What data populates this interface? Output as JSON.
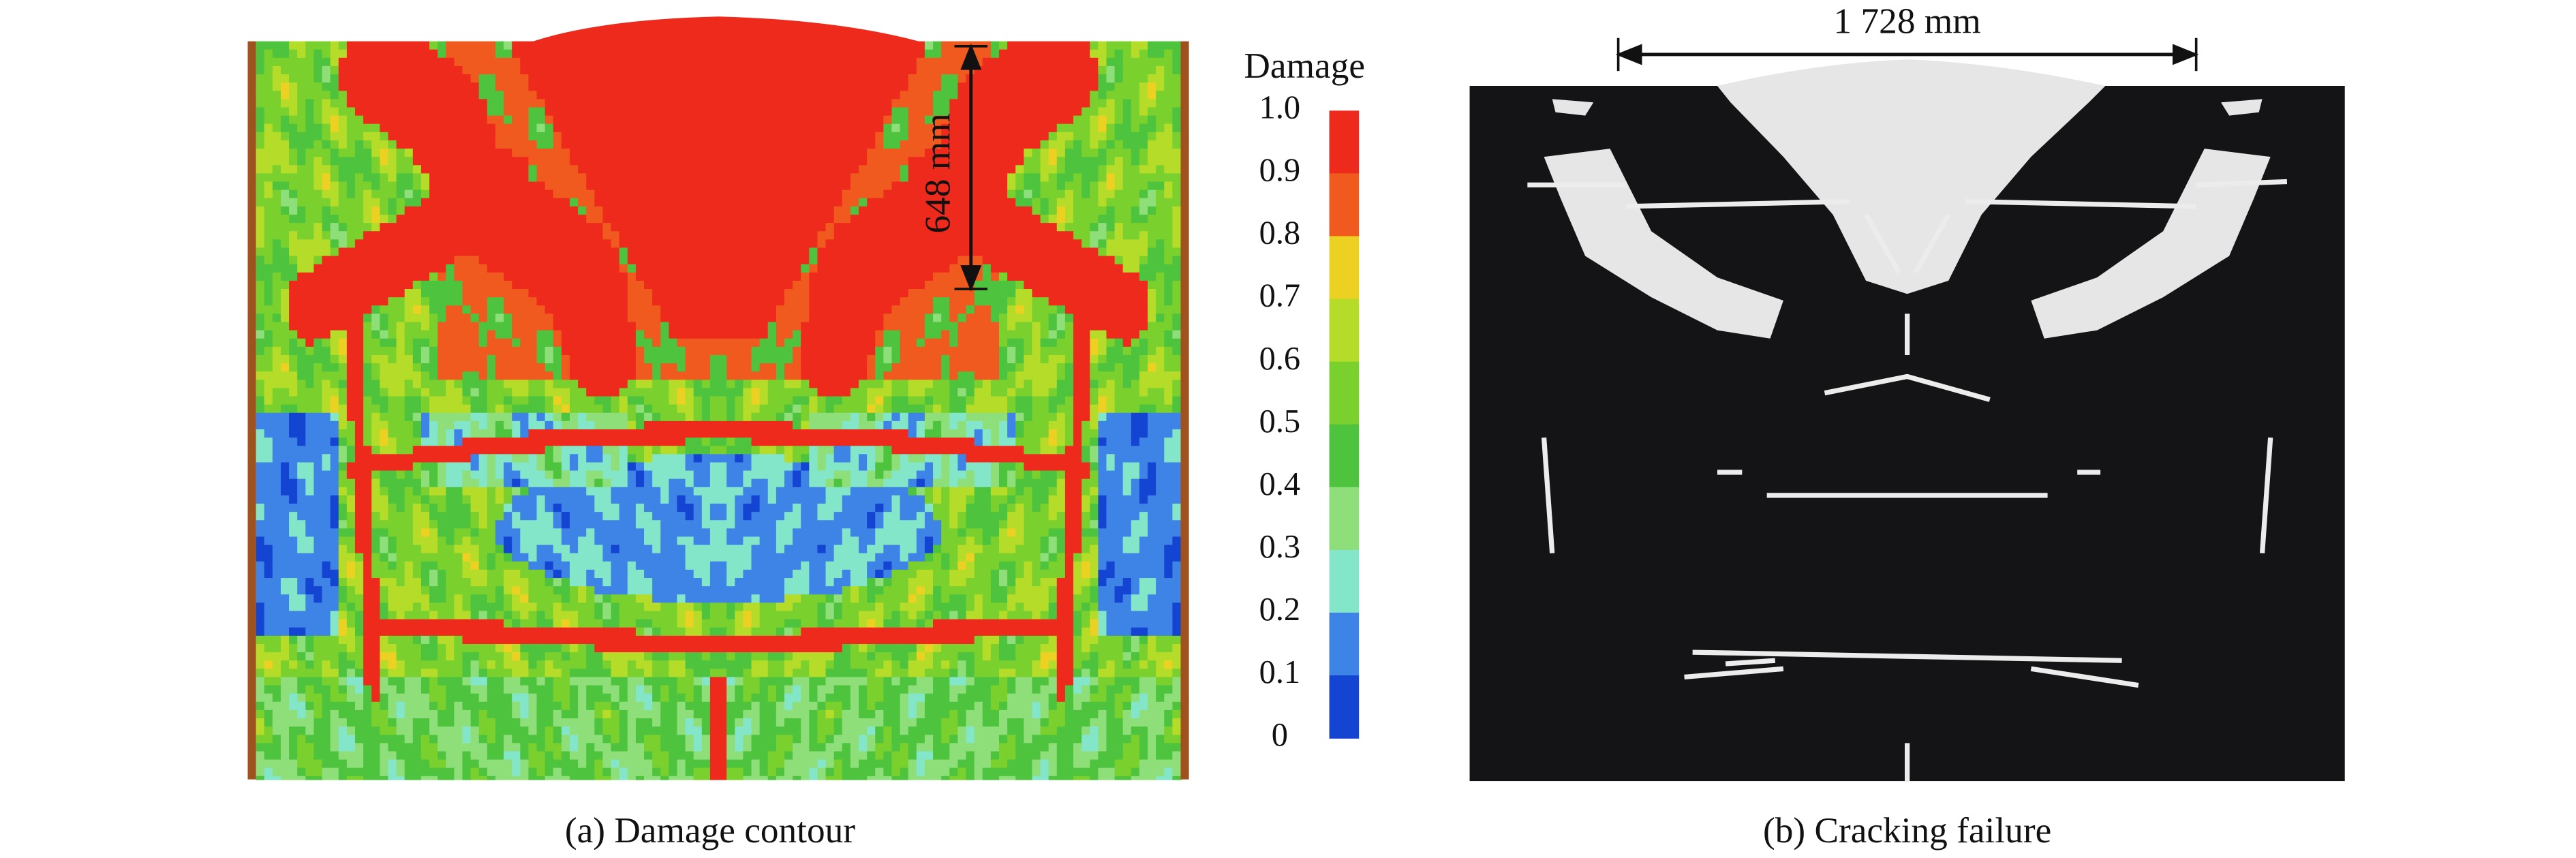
{
  "panel_a": {
    "caption": "(a) Damage contour",
    "dimension": "648 mm",
    "colorbar": {
      "title": "Damage",
      "ticks": [
        "1.0",
        "0.9",
        "0.8",
        "0.7",
        "0.6",
        "0.5",
        "0.4",
        "0.3",
        "0.2",
        "0.1",
        "0"
      ],
      "colors": [
        "#ee2a1c",
        "#f05a1e",
        "#ecd022",
        "#b6dc2a",
        "#7ad02c",
        "#4ec43e",
        "#8ede7a",
        "#84e6c8",
        "#3e84e6",
        "#1444d2"
      ]
    }
  },
  "panel_b": {
    "caption": "(b) Cracking failure",
    "dimension": "1 728 mm"
  }
}
